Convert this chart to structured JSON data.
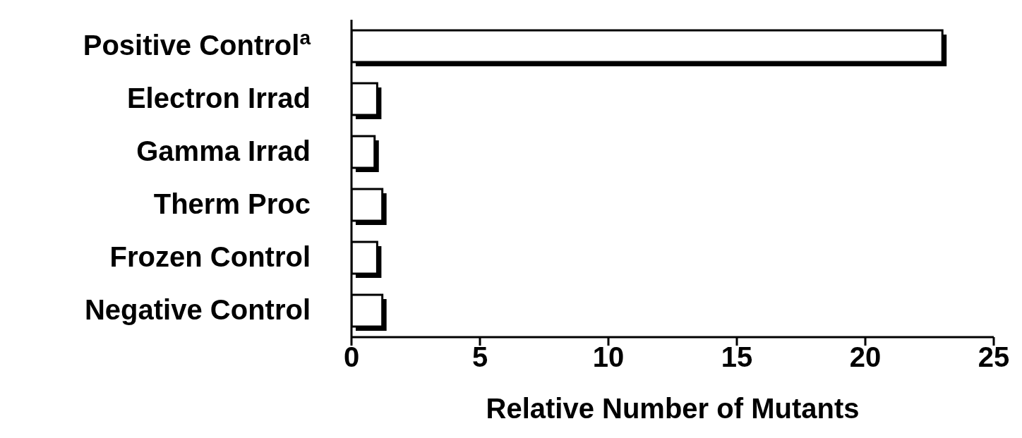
{
  "chart_data": {
    "type": "bar",
    "orientation": "horizontal",
    "categories": [
      "Positive Control$^{a}$",
      "Electron Irrad",
      "Gamma Irrad",
      "Therm Proc",
      "Frozen Control",
      "Negative Control"
    ],
    "values": [
      23,
      1.0,
      0.9,
      1.2,
      1.0,
      1.2
    ],
    "color": "#ffffff",
    "xlabel": "Relative Number of Mutants",
    "xlim": [
      0,
      25
    ],
    "xticks": [
      0,
      5,
      10,
      15,
      20,
      25
    ],
    "grid": false
  }
}
